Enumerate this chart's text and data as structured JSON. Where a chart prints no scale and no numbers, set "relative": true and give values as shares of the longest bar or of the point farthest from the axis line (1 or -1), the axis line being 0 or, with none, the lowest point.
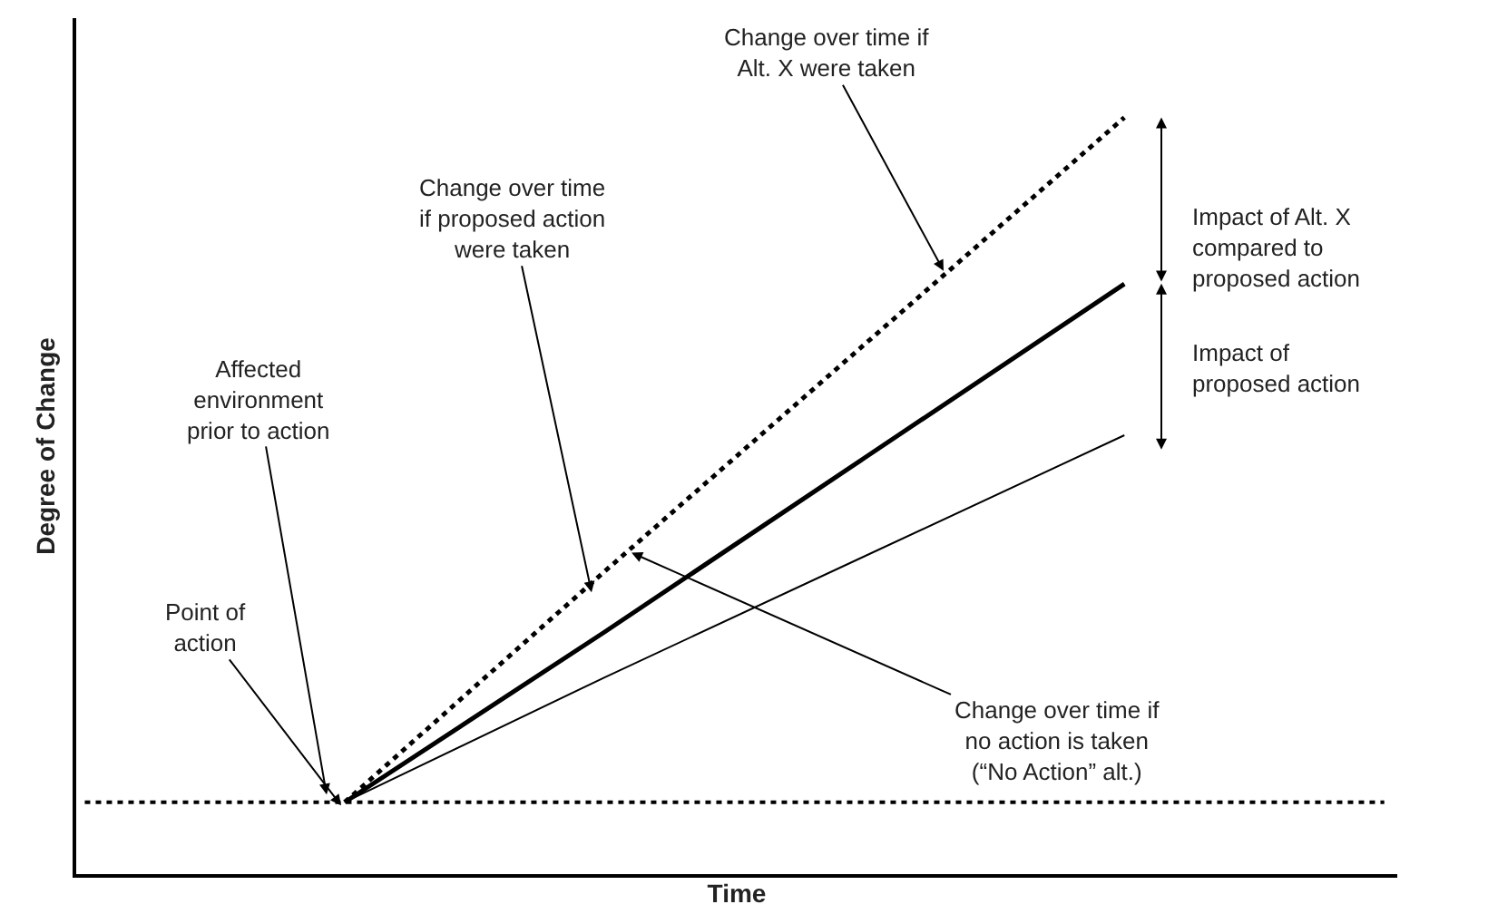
{
  "chart_data": {
    "type": "line",
    "relative": true,
    "xlabel": "Time",
    "ylabel": "Degree of Change",
    "categories": [
      null,
      null,
      null,
      null,
      null,
      null
    ],
    "series": [
      {
        "color": "#000000",
        "line_style": "dotted",
        "values": [
          0.095,
          0.095,
          0.095,
          0.095,
          0.095,
          0.095
        ]
      },
      {
        "color": "#000000",
        "line_style": "dotted",
        "values": [
          null,
          0.095,
          0.4,
          0.7,
          1.0,
          null
        ]
      },
      {
        "color": "#000000",
        "line_style": "solid",
        "values": [
          null,
          0.095,
          0.32,
          0.55,
          0.78,
          null
        ]
      },
      {
        "color": "#000000",
        "line_style": "solid",
        "values": [
          null,
          0.095,
          0.26,
          0.42,
          0.58,
          null
        ]
      }
    ],
    "annotations": [
      "Change over time if\nAlt. X were taken",
      "Change over time\nif proposed action\nwere taken",
      "Affected\nenvironment\nprior to action",
      "Point of\naction",
      "Change over time if\nno action is taken\n(“No Action” alt.)",
      "Impact of Alt. X\ncompared to\nproposed action",
      "Impact of\nproposed action"
    ],
    "marker": "none"
  }
}
